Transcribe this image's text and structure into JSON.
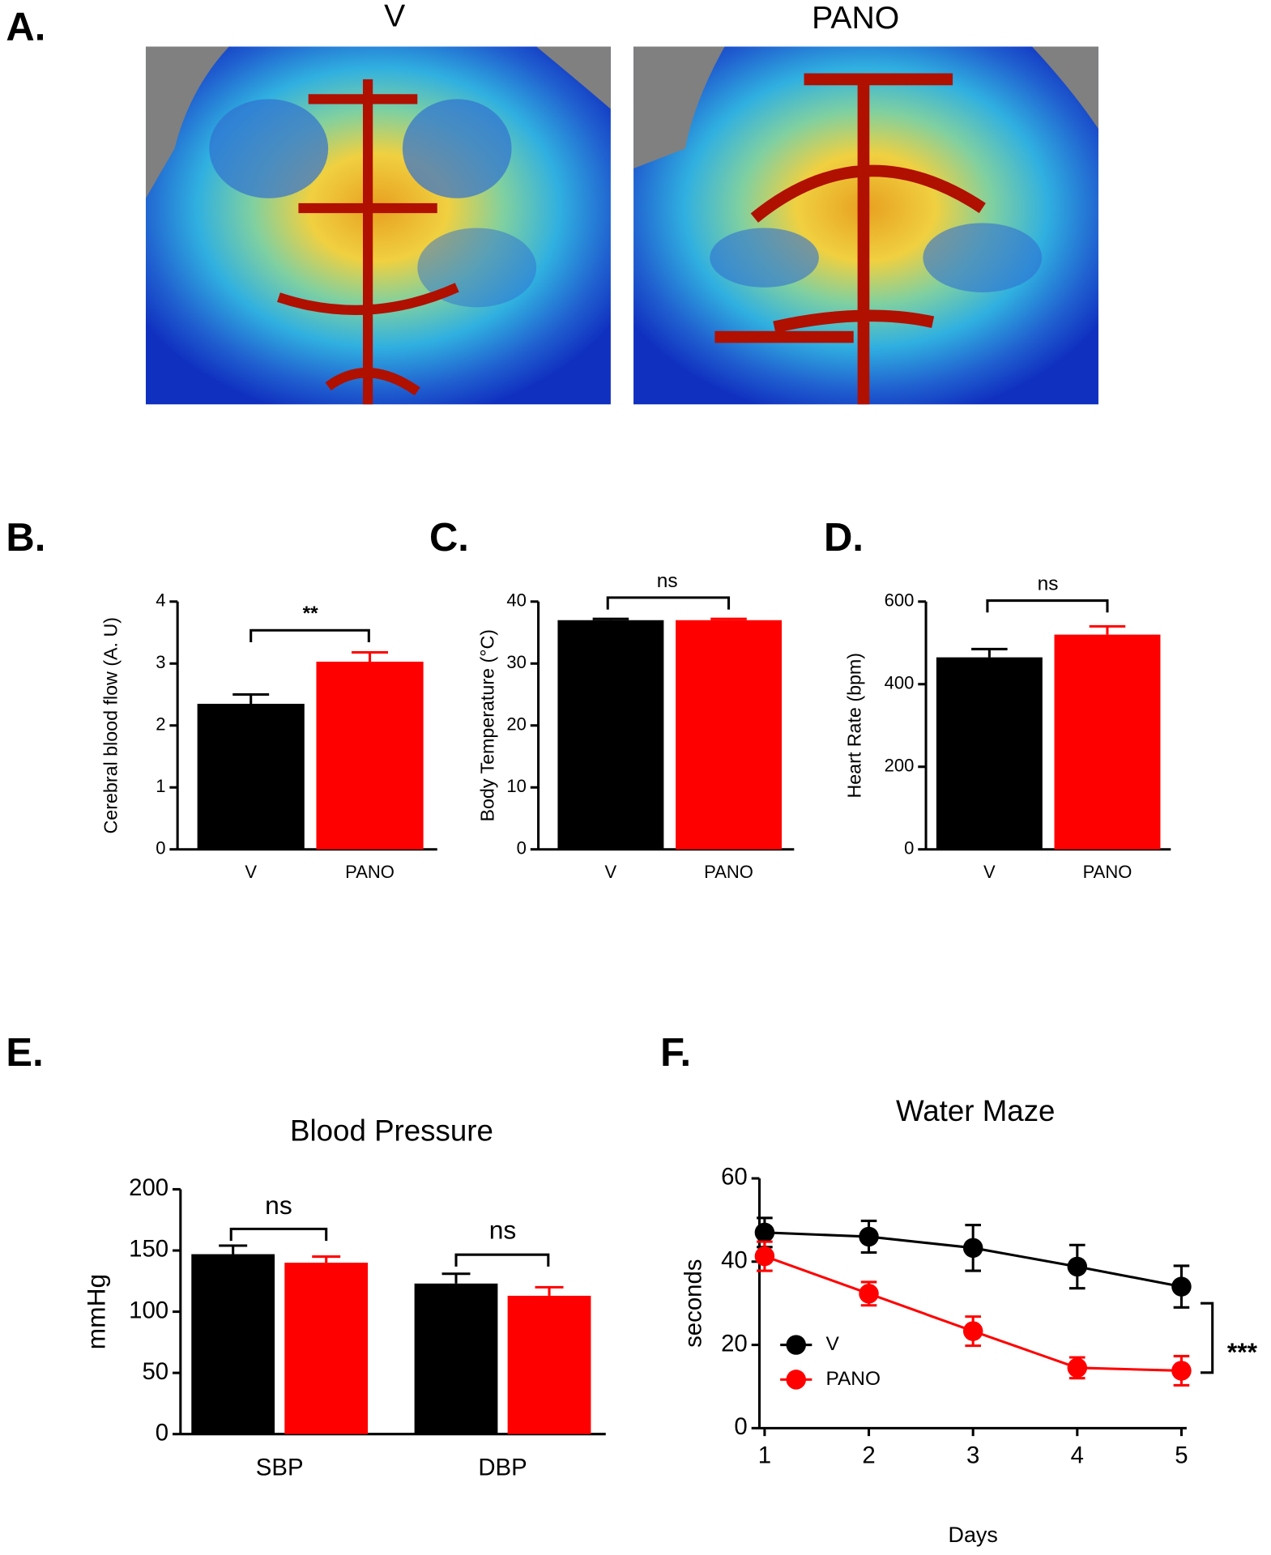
{
  "image_panel": {
    "panel": "A.",
    "titles": [
      "V",
      "PANO"
    ]
  },
  "chart_data": [
    {
      "type": "bar",
      "panel": "B.",
      "ylabel": "Cerebral blood flow (A. U)",
      "categories": [
        "V",
        "PANO"
      ],
      "values": [
        2.35,
        3.03
      ],
      "errors": [
        0.15,
        0.15
      ],
      "colors": [
        "#000000",
        "#ff0000"
      ],
      "ylim": [
        0,
        4
      ],
      "yticks": [
        0,
        1,
        2,
        3,
        4
      ],
      "annotations": [
        "**"
      ]
    },
    {
      "type": "bar",
      "panel": "C.",
      "ylabel": "Body Temperature (°C)",
      "categories": [
        "V",
        "PANO"
      ],
      "values": [
        37,
        37
      ],
      "errors": [
        0.2,
        0.2
      ],
      "colors": [
        "#000000",
        "#ff0000"
      ],
      "ylim": [
        0,
        40
      ],
      "yticks": [
        0,
        10,
        20,
        30,
        40
      ],
      "annotations": [
        "ns"
      ]
    },
    {
      "type": "bar",
      "panel": "D.",
      "ylabel": "Heart Rate (bpm)",
      "categories": [
        "V",
        "PANO"
      ],
      "values": [
        465,
        520
      ],
      "errors": [
        20,
        20
      ],
      "colors": [
        "#000000",
        "#ff0000"
      ],
      "ylim": [
        0,
        600
      ],
      "yticks": [
        0,
        200,
        400,
        600
      ],
      "annotations": [
        "ns"
      ]
    },
    {
      "type": "groupedbar",
      "panel": "E.",
      "title": "Blood Pressure",
      "ylabel": "mmHg",
      "categories": [
        "SBP",
        "DBP"
      ],
      "series": [
        {
          "color": "#000000",
          "values": [
            147,
            123
          ],
          "errors": [
            7,
            8
          ]
        },
        {
          "color": "#ff0000",
          "values": [
            140,
            113
          ],
          "errors": [
            5,
            7
          ]
        }
      ],
      "ylim": [
        0,
        200
      ],
      "yticks": [
        0,
        50,
        100,
        150,
        200
      ],
      "annotations": [
        "ns",
        "ns"
      ]
    },
    {
      "type": "line",
      "panel": "F.",
      "title": "Water Maze",
      "xlabel": "Days",
      "ylabel": "seconds",
      "x": [
        1,
        2,
        3,
        4,
        5
      ],
      "series": [
        {
          "name": "V",
          "color": "#000000",
          "values": [
            47,
            46,
            43.3,
            38.8,
            34
          ],
          "errors": [
            3.5,
            3.8,
            5.5,
            5.2,
            5
          ]
        },
        {
          "name": "PANO",
          "color": "#ff0000",
          "values": [
            41.3,
            32.3,
            23.3,
            14.5,
            13.8
          ],
          "errors": [
            3.5,
            2.8,
            3.5,
            2.5,
            3.5
          ]
        }
      ],
      "xlim": [
        0.95,
        5.05
      ],
      "xticks": [
        1,
        2,
        3,
        4,
        5
      ],
      "ylim": [
        0,
        60
      ],
      "yticks": [
        0,
        20,
        40,
        60
      ],
      "legend": "lower left",
      "annotations": [
        "***"
      ]
    }
  ]
}
